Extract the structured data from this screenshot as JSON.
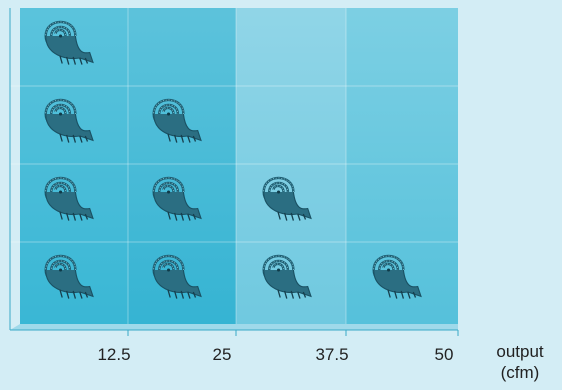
{
  "chart_data": {
    "type": "bar",
    "subtype": "pictograph",
    "icon": "spiral-shell-icon",
    "title": "",
    "xlabel": "output\n(cfm)",
    "ylabel": "",
    "categories": [
      "12.5",
      "25",
      "37.5",
      "50"
    ],
    "values": [
      4,
      3,
      2,
      1
    ],
    "x_ticks": [
      "12.5",
      "25",
      "37.5",
      "50"
    ],
    "ylim": [
      0,
      4
    ],
    "grid": true,
    "colors": {
      "page_bg": "#d3edf5",
      "plot_bg": "#5cc3dc",
      "column_light": "#8fd4e6",
      "column_mid": "#6ccbe1",
      "column_dark": "#33b6d5",
      "icon": "#1f5f73",
      "axis": "#3aa9c6",
      "text": "#222222"
    }
  }
}
